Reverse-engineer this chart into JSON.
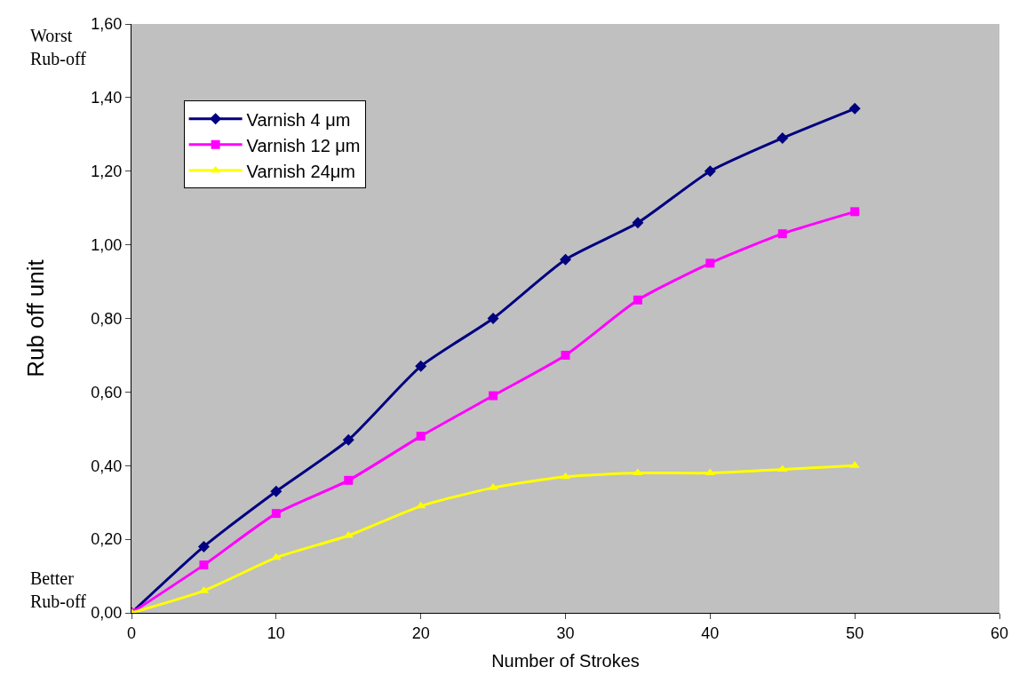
{
  "chart_data": {
    "type": "line",
    "xlabel": "Number of Strokes",
    "ylabel": "Rub off unit",
    "x": [
      0,
      5,
      10,
      15,
      20,
      25,
      30,
      35,
      40,
      45,
      50
    ],
    "series": [
      {
        "name": "Varnish 4 μm",
        "color": "#000080",
        "marker": "diamond",
        "values": [
          0,
          0.18,
          0.33,
          0.47,
          0.67,
          0.8,
          0.96,
          1.06,
          1.2,
          1.29,
          1.37
        ]
      },
      {
        "name": "Varnish 12 μm",
        "color": "#ff00ff",
        "marker": "square",
        "values": [
          0,
          0.13,
          0.27,
          0.36,
          0.48,
          0.59,
          0.7,
          0.85,
          0.95,
          1.03,
          1.09
        ]
      },
      {
        "name": "Varnish 24μm",
        "color": "#ffff00",
        "marker": "triangle",
        "values": [
          0,
          0.06,
          0.15,
          0.21,
          0.29,
          0.34,
          0.37,
          0.38,
          0.38,
          0.39,
          0.4
        ]
      }
    ],
    "xlim": [
      0,
      60
    ],
    "xticks": [
      0,
      10,
      20,
      30,
      40,
      50,
      60
    ],
    "ylim": [
      0,
      1.6
    ],
    "yticks": [
      {
        "value": 0,
        "label": "0,00"
      },
      {
        "value": 0.2,
        "label": "0,20"
      },
      {
        "value": 0.4,
        "label": "0,40"
      },
      {
        "value": 0.6,
        "label": "0,60"
      },
      {
        "value": 0.8,
        "label": "0,80"
      },
      {
        "value": 1.0,
        "label": "1,00"
      },
      {
        "value": 1.2,
        "label": "1,20"
      },
      {
        "value": 1.4,
        "label": "1,40"
      },
      {
        "value": 1.6,
        "label": "1,60"
      }
    ],
    "annotations": [
      "Worst\nRub-off",
      "Better\nRub-off"
    ],
    "grid": false,
    "legend": "top left",
    "line_style": "solid"
  }
}
